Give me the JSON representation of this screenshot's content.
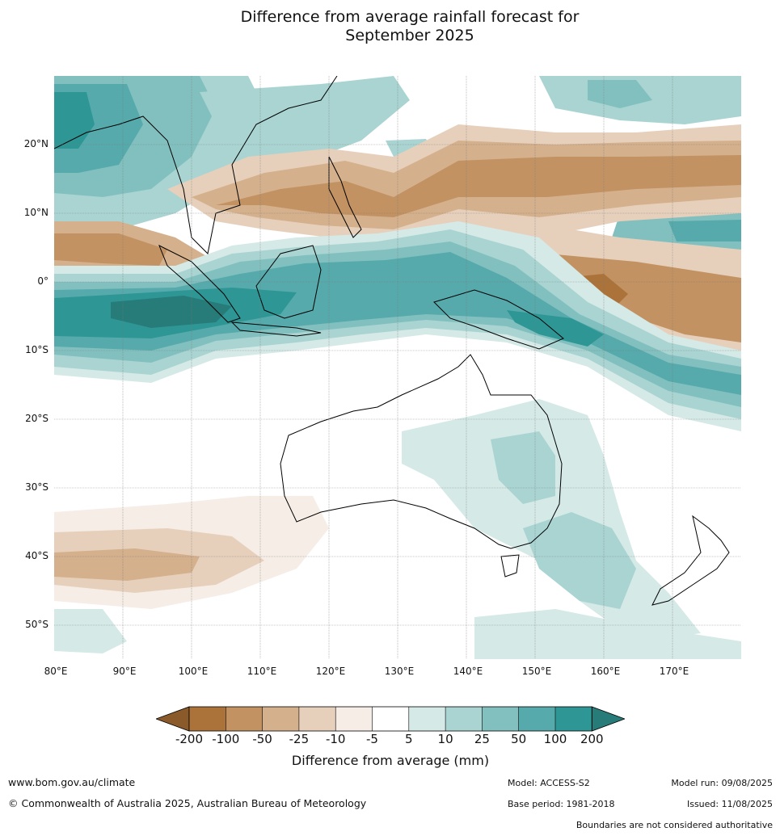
{
  "title_line1": "Difference from average rainfall forecast for",
  "title_line2": "September 2025",
  "map": {
    "lat_labels": [
      "20°N",
      "10°N",
      "0°",
      "10°S",
      "20°S",
      "30°S",
      "40°S",
      "50°S"
    ],
    "lon_labels": [
      "80°E",
      "90°E",
      "100°E",
      "110°E",
      "120°E",
      "130°E",
      "140°E",
      "150°E",
      "160°E",
      "170°E"
    ],
    "extent": {
      "lon_min": 80,
      "lon_max": 180,
      "lat_min": -55,
      "lat_max": 30
    }
  },
  "legend": {
    "title": "Difference from average (mm)",
    "ticks": [
      "-200",
      "-100",
      "-50",
      "-25",
      "-10",
      "-5",
      "5",
      "10",
      "25",
      "50",
      "100",
      "200"
    ],
    "colors": [
      "#8a5a2b",
      "#ab733a",
      "#c29262",
      "#d4b08c",
      "#e6d0bb",
      "#f5ede6",
      "#ffffff",
      "#d5e9e7",
      "#a9d4d2",
      "#82c0bf",
      "#57aaab",
      "#2e9795",
      "#277b78"
    ]
  },
  "footer": {
    "website": "www.bom.gov.au/climate",
    "copyright": "© Commonwealth of Australia 2025, Australian Bureau of Meteorology",
    "model": "Model: ACCESS-S2",
    "base_period": "Base period: 1981-2018",
    "model_run": "Model run: 09/08/2025",
    "issued": "Issued: 11/08/2025",
    "disclaimer": "Boundaries are not considered authoritative"
  }
}
